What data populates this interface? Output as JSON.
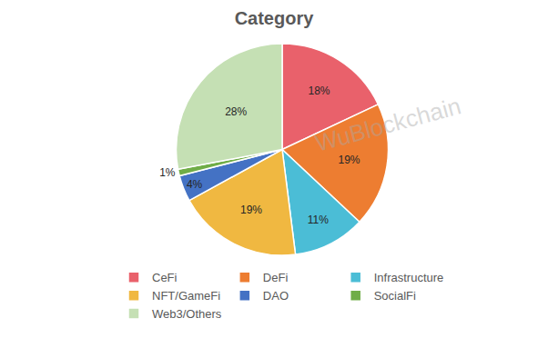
{
  "chart_data": {
    "type": "pie",
    "title": "Category",
    "categories": [
      "CeFi",
      "DeFi",
      "Infrastructure",
      "NFT/GameFi",
      "DAO",
      "SocialFi",
      "Web3/Others"
    ],
    "values": [
      18,
      19,
      11,
      19,
      4,
      1,
      28
    ],
    "value_labels": [
      "18%",
      "19%",
      "11%",
      "19%",
      "4%",
      "1%",
      "28%"
    ],
    "colors": [
      "#e9616b",
      "#ed7d31",
      "#4bbdd6",
      "#f0b841",
      "#4472c4",
      "#70ad47",
      "#c5e0b4"
    ],
    "data_labels": true,
    "legend": "bottom",
    "annotations": [
      "WuBlockchain"
    ]
  }
}
